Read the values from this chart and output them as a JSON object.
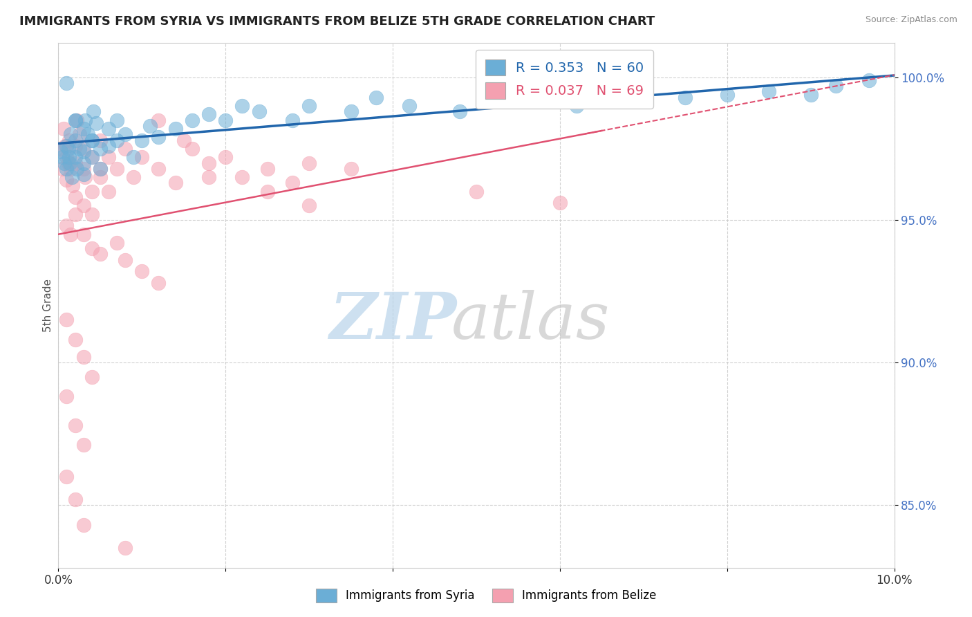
{
  "title": "IMMIGRANTS FROM SYRIA VS IMMIGRANTS FROM BELIZE 5TH GRADE CORRELATION CHART",
  "source": "Source: ZipAtlas.com",
  "ylabel": "5th Grade",
  "xlim": [
    0.0,
    0.1
  ],
  "ylim": [
    0.828,
    1.012
  ],
  "yticks": [
    0.85,
    0.9,
    0.95,
    1.0
  ],
  "ytick_labels": [
    "85.0%",
    "90.0%",
    "95.0%",
    "100.0%"
  ],
  "xticks": [
    0.0,
    0.02,
    0.04,
    0.06,
    0.08,
    0.1
  ],
  "xtick_labels": [
    "0.0%",
    "",
    "",
    "",
    "",
    "10.0%"
  ],
  "legend_blue_label": "R = 0.353   N = 60",
  "legend_pink_label": "R = 0.037   N = 69",
  "blue_color": "#6baed6",
  "pink_color": "#f4a0b0",
  "blue_line_color": "#2166ac",
  "pink_line_color": "#e05070",
  "syria_x": [
    0.0003,
    0.0005,
    0.0007,
    0.001,
    0.001,
    0.0012,
    0.0013,
    0.0014,
    0.0015,
    0.0016,
    0.002,
    0.002,
    0.002,
    0.0022,
    0.0025,
    0.003,
    0.003,
    0.003,
    0.0032,
    0.0035,
    0.004,
    0.004,
    0.0042,
    0.0045,
    0.005,
    0.005,
    0.006,
    0.006,
    0.007,
    0.007,
    0.008,
    0.009,
    0.01,
    0.011,
    0.012,
    0.014,
    0.016,
    0.018,
    0.02,
    0.022,
    0.024,
    0.028,
    0.03,
    0.035,
    0.038,
    0.042,
    0.048,
    0.055,
    0.062,
    0.07,
    0.075,
    0.08,
    0.085,
    0.09,
    0.093,
    0.097,
    0.001,
    0.002,
    0.003,
    0.004
  ],
  "syria_y": [
    0.974,
    0.972,
    0.97,
    0.976,
    0.968,
    0.975,
    0.972,
    0.97,
    0.98,
    0.965,
    0.985,
    0.978,
    0.972,
    0.968,
    0.975,
    0.974,
    0.97,
    0.966,
    0.985,
    0.98,
    0.978,
    0.972,
    0.988,
    0.984,
    0.975,
    0.968,
    0.982,
    0.976,
    0.985,
    0.978,
    0.98,
    0.972,
    0.978,
    0.983,
    0.979,
    0.982,
    0.985,
    0.987,
    0.985,
    0.99,
    0.988,
    0.985,
    0.99,
    0.988,
    0.993,
    0.99,
    0.988,
    0.992,
    0.99,
    0.992,
    0.993,
    0.994,
    0.995,
    0.994,
    0.997,
    0.999,
    0.998,
    0.985,
    0.982,
    0.978
  ],
  "belize_x": [
    0.0003,
    0.0005,
    0.0006,
    0.0008,
    0.001,
    0.001,
    0.0012,
    0.0013,
    0.0015,
    0.0017,
    0.002,
    0.002,
    0.0022,
    0.0025,
    0.003,
    0.003,
    0.0032,
    0.004,
    0.004,
    0.005,
    0.005,
    0.006,
    0.007,
    0.008,
    0.009,
    0.01,
    0.012,
    0.014,
    0.016,
    0.018,
    0.02,
    0.022,
    0.025,
    0.028,
    0.03,
    0.002,
    0.003,
    0.004,
    0.005,
    0.006,
    0.001,
    0.0015,
    0.002,
    0.003,
    0.004,
    0.005,
    0.007,
    0.008,
    0.01,
    0.012,
    0.001,
    0.002,
    0.003,
    0.004,
    0.001,
    0.002,
    0.003,
    0.035,
    0.05,
    0.06,
    0.001,
    0.002,
    0.003,
    0.008,
    0.012,
    0.015,
    0.018,
    0.025,
    0.03
  ],
  "belize_y": [
    0.975,
    0.968,
    0.982,
    0.976,
    0.972,
    0.964,
    0.97,
    0.978,
    0.968,
    0.962,
    0.976,
    0.97,
    0.985,
    0.98,
    0.975,
    0.968,
    0.965,
    0.972,
    0.96,
    0.968,
    0.978,
    0.972,
    0.968,
    0.975,
    0.965,
    0.972,
    0.968,
    0.963,
    0.975,
    0.97,
    0.972,
    0.965,
    0.968,
    0.963,
    0.97,
    0.958,
    0.955,
    0.952,
    0.965,
    0.96,
    0.948,
    0.945,
    0.952,
    0.945,
    0.94,
    0.938,
    0.942,
    0.936,
    0.932,
    0.928,
    0.915,
    0.908,
    0.902,
    0.895,
    0.888,
    0.878,
    0.871,
    0.968,
    0.96,
    0.956,
    0.86,
    0.852,
    0.843,
    0.835,
    0.985,
    0.978,
    0.965,
    0.96,
    0.955
  ]
}
